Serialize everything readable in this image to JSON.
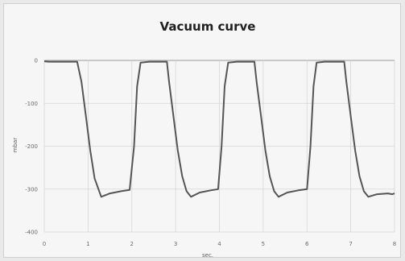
{
  "chart_data": {
    "type": "line",
    "title": "Vacuum curve",
    "xlabel": "sec.",
    "ylabel": "mbar",
    "xlim": [
      0,
      8
    ],
    "ylim": [
      -400,
      0
    ],
    "x_ticks": [
      "0",
      "1",
      "2",
      "3",
      "4",
      "5",
      "6",
      "7",
      "8"
    ],
    "y_ticks": [
      "0",
      "-100",
      "-200",
      "-300",
      "-400"
    ],
    "grid": true,
    "legend": "none",
    "series": [
      {
        "color": "#555555",
        "x": [
          0.0,
          0.1,
          0.5,
          0.75,
          0.85,
          0.95,
          1.05,
          1.15,
          1.3,
          1.5,
          1.75,
          1.95,
          2.05,
          2.12,
          2.2,
          2.4,
          2.8,
          2.85,
          2.95,
          3.05,
          3.15,
          3.25,
          3.35,
          3.55,
          3.8,
          3.97,
          4.05,
          4.12,
          4.2,
          4.4,
          4.8,
          4.85,
          4.95,
          5.05,
          5.15,
          5.25,
          5.35,
          5.55,
          5.8,
          6.0,
          6.08,
          6.15,
          6.22,
          6.4,
          6.85,
          6.9,
          7.0,
          7.1,
          7.2,
          7.3,
          7.4,
          7.6,
          7.85,
          7.95,
          8.0
        ],
        "y": [
          -2,
          -3,
          -3,
          -3,
          -50,
          -130,
          -210,
          -275,
          -318,
          -310,
          -305,
          -302,
          -200,
          -60,
          -5,
          -3,
          -3,
          -50,
          -130,
          -210,
          -270,
          -305,
          -318,
          -308,
          -303,
          -300,
          -200,
          -60,
          -5,
          -3,
          -3,
          -50,
          -130,
          -210,
          -270,
          -305,
          -318,
          -308,
          -303,
          -300,
          -200,
          -60,
          -5,
          -3,
          -3,
          -50,
          -130,
          -210,
          -270,
          -305,
          -318,
          -312,
          -310,
          -312,
          -310
        ]
      }
    ]
  }
}
